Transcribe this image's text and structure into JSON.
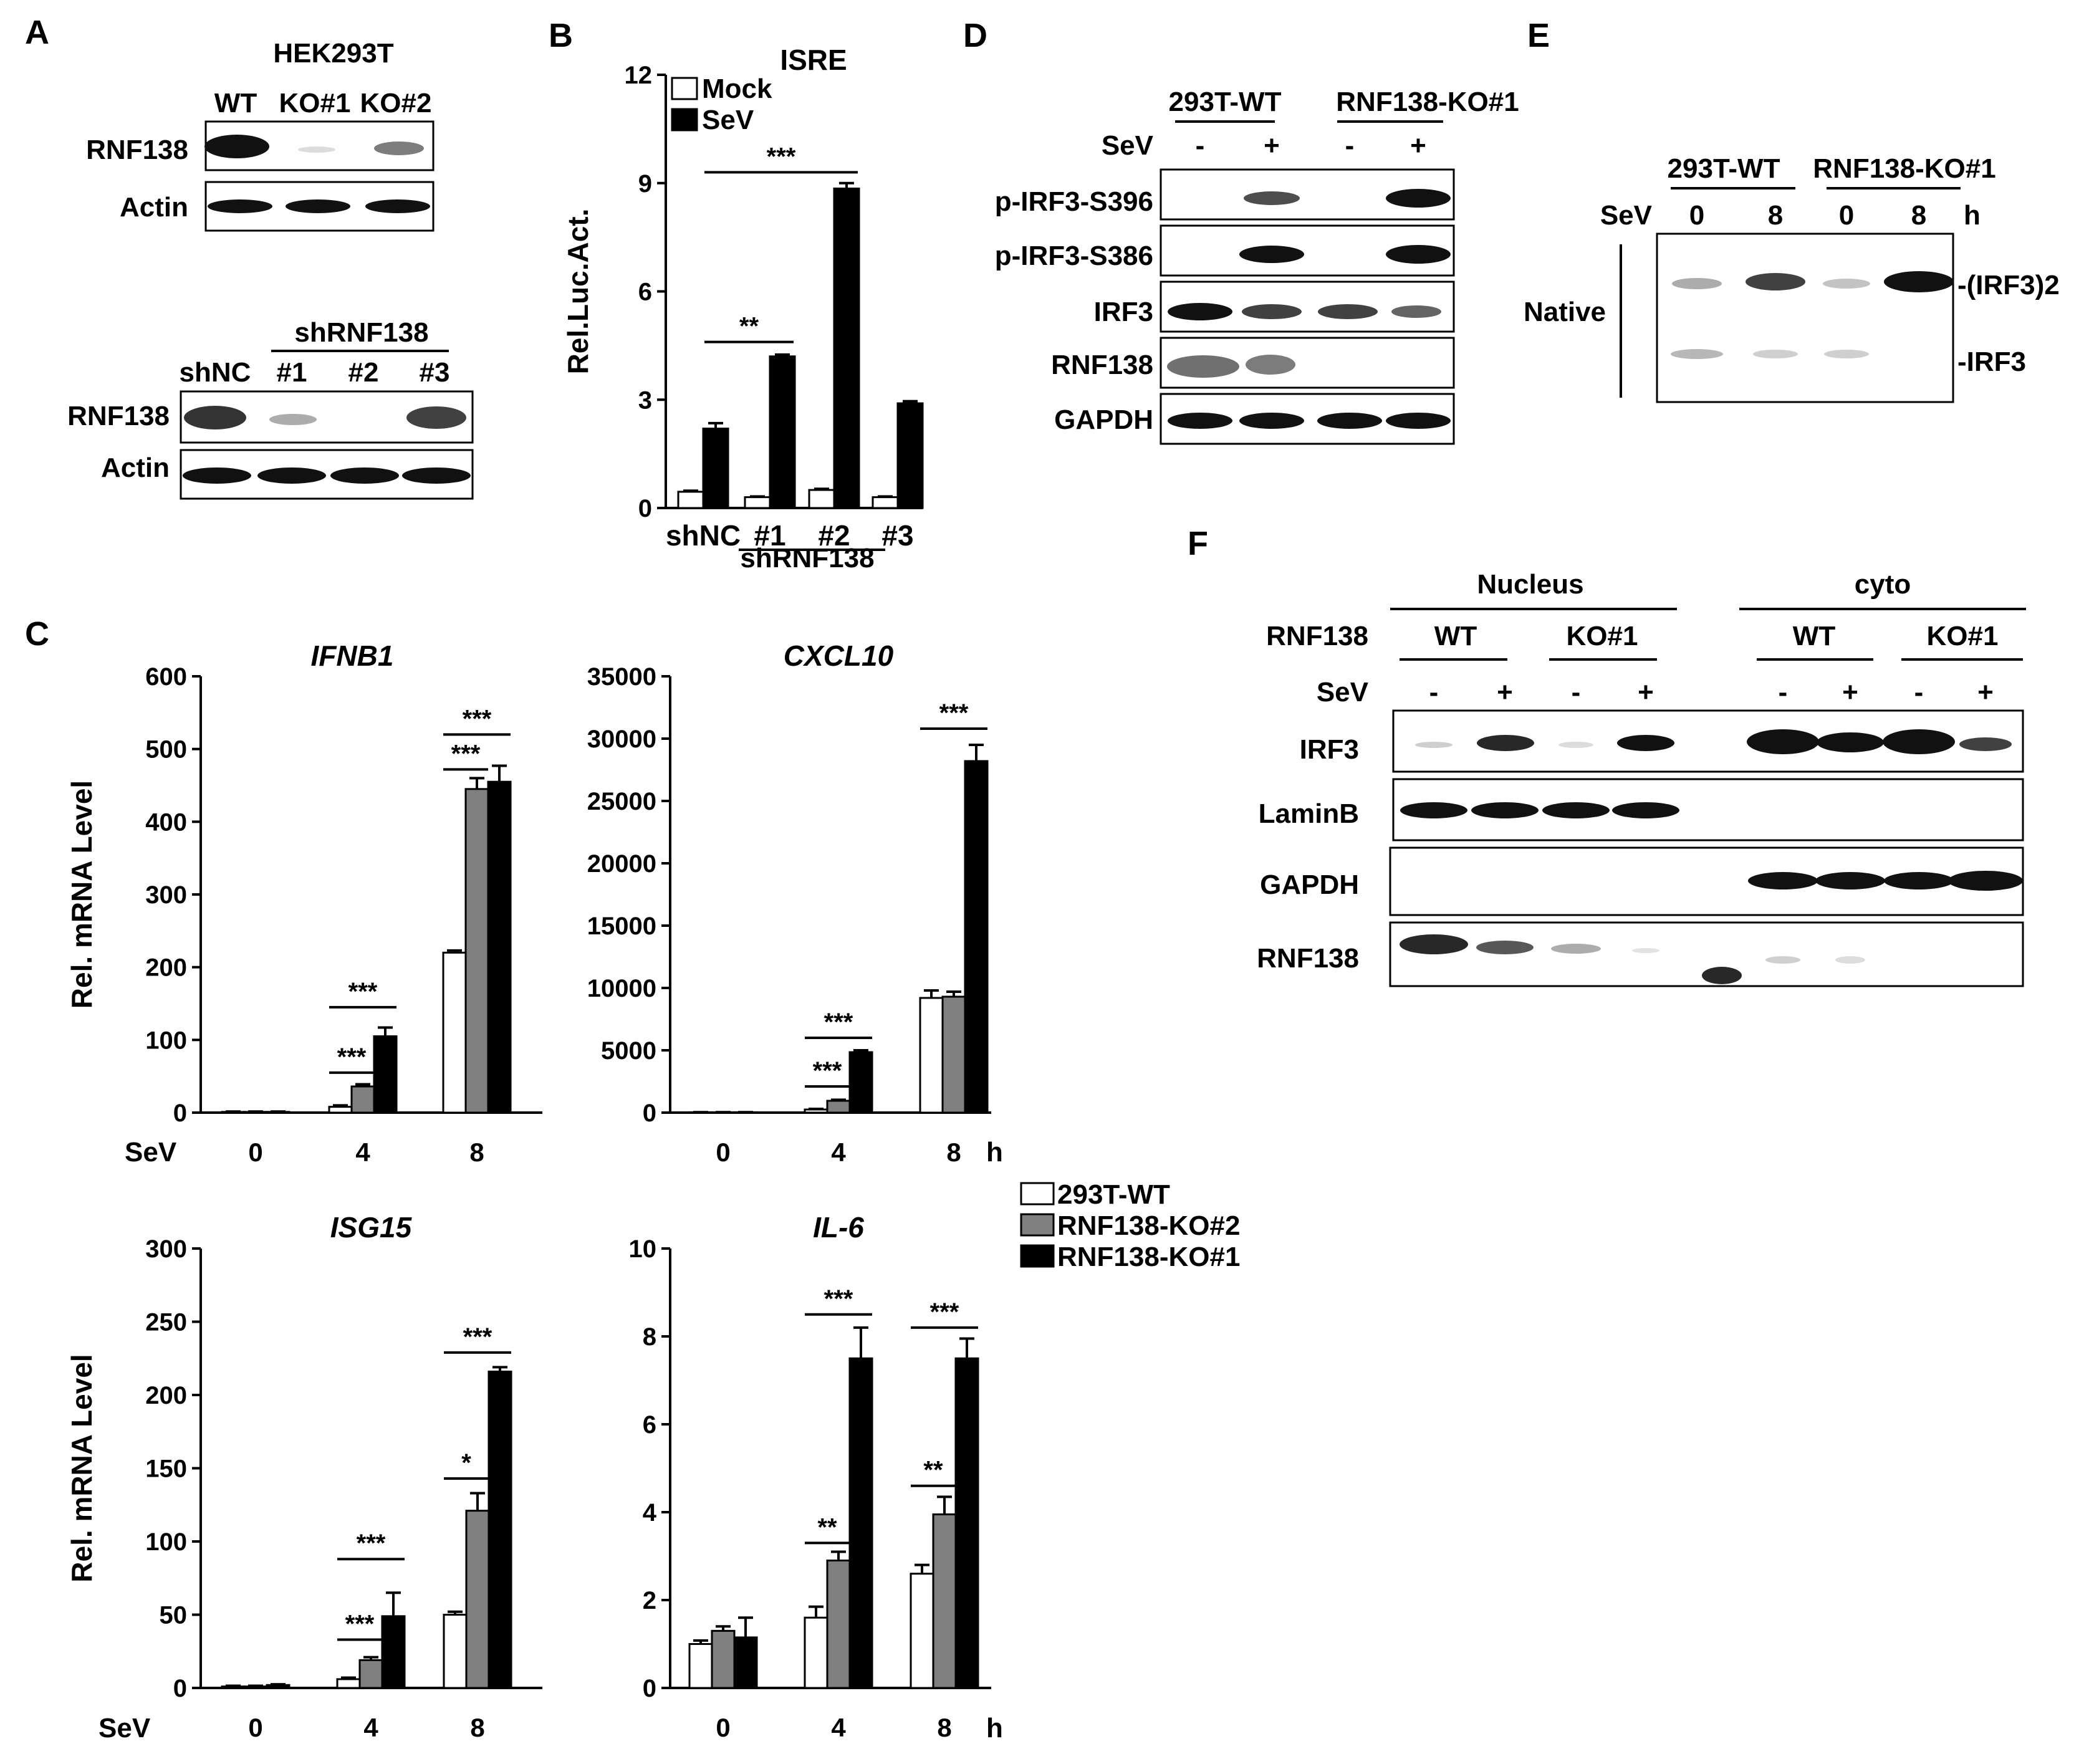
{
  "panels": {
    "A": {
      "letter": "A",
      "cell_line": "HEK293T",
      "ko_lanes": [
        "WT",
        "KO#1",
        "KO#2"
      ],
      "ko_rows": [
        "RNF138",
        "Actin"
      ],
      "sh_group": "shRNF138",
      "sh_lanes": [
        "shNC",
        "#1",
        "#2",
        "#3"
      ],
      "sh_rows": [
        "RNF138",
        "Actin"
      ]
    },
    "B": {
      "letter": "B",
      "sh_group": "shRNF138"
    },
    "C": {
      "letter": "C",
      "sev_label": "SeV",
      "h_label": "h",
      "legend": [
        "293T-WT",
        "RNF138-KO#2",
        "RNF138-KO#1"
      ]
    },
    "D": {
      "letter": "D",
      "groups": [
        "293T-WT",
        "RNF138-KO#1"
      ],
      "sev_label": "SeV",
      "treat": [
        "-",
        "+",
        "-",
        "+"
      ],
      "rows": [
        "p-IRF3-S396",
        "p-IRF3-S386",
        "IRF3",
        "RNF138",
        "GAPDH"
      ]
    },
    "E": {
      "letter": "E",
      "groups": [
        "293T-WT",
        "RNF138-KO#1"
      ],
      "sev_label": "SeV",
      "times": [
        "0",
        "8",
        "0",
        "8"
      ],
      "h_label": "h",
      "side_label": "Native",
      "bands": [
        "-(IRF3)2",
        "-IRF3"
      ]
    },
    "F": {
      "letter": "F",
      "fractions": [
        "Nucleus",
        "cyto"
      ],
      "row_label": "RNF138",
      "genotypes": [
        "WT",
        "KO#1",
        "WT",
        "KO#1"
      ],
      "sev_label": "SeV",
      "treat": [
        "-",
        "+",
        "-",
        "+",
        "-",
        "+",
        "-",
        "+"
      ],
      "rows": [
        "IRF3",
        "LaminB",
        "GAPDH",
        "RNF138"
      ]
    }
  },
  "chart_data": [
    {
      "id": "B",
      "type": "bar",
      "title": "ISRE",
      "ylabel": "Rel.Luc.Act.",
      "categories": [
        "shNC",
        "#1",
        "#2",
        "#3"
      ],
      "ylim": [
        0,
        12
      ],
      "yticks": [
        0,
        3,
        6,
        9,
        12
      ],
      "series": [
        {
          "name": "Mock",
          "values": [
            0.45,
            0.3,
            0.5,
            0.3
          ],
          "errors": [
            0.03,
            0.02,
            0.03,
            0.02
          ],
          "color": "#ffffff"
        },
        {
          "name": "SeV",
          "values": [
            2.2,
            4.2,
            8.85,
            2.9
          ],
          "errors": [
            0.15,
            0.05,
            0.15,
            0.06
          ],
          "color": "#000000"
        }
      ],
      "significance": [
        {
          "label": "**",
          "from": 0,
          "to": 1,
          "y": 4.6
        },
        {
          "label": "***",
          "from": 0,
          "to": 2,
          "y": 9.3
        }
      ]
    },
    {
      "id": "IFNB1",
      "type": "bar",
      "title": "IFNB1",
      "ylabel": "Rel. mRNA Level",
      "categories": [
        "0",
        "4",
        "8"
      ],
      "ylim": [
        0,
        600
      ],
      "yticks": [
        0,
        100,
        200,
        300,
        400,
        500,
        600
      ],
      "series": [
        {
          "name": "293T-WT",
          "values": [
            1,
            8,
            220
          ],
          "errors": [
            0.5,
            2,
            3
          ],
          "color": "#ffffff"
        },
        {
          "name": "RNF138-KO#2",
          "values": [
            1,
            36,
            445
          ],
          "errors": [
            0.5,
            3,
            15
          ],
          "color": "#808080"
        },
        {
          "name": "RNF138-KO#1",
          "values": [
            1,
            105,
            455
          ],
          "errors": [
            0.5,
            12,
            22
          ],
          "color": "#000000"
        }
      ],
      "significance": [
        {
          "label": "***",
          "cat": 1,
          "from": 0,
          "to": 1,
          "y": 55
        },
        {
          "label": "***",
          "cat": 1,
          "from": 0,
          "to": 2,
          "y": 145
        },
        {
          "label": "***",
          "cat": 2,
          "from": 0,
          "to": 1,
          "y": 472
        },
        {
          "label": "***",
          "cat": 2,
          "from": 0,
          "to": 2,
          "y": 520
        }
      ]
    },
    {
      "id": "CXCL10",
      "type": "bar",
      "title": "CXCL10",
      "ylabel": "",
      "categories": [
        "0",
        "4",
        "8"
      ],
      "ylim": [
        0,
        35000
      ],
      "yticks": [
        0,
        5000,
        10000,
        15000,
        20000,
        25000,
        30000,
        35000
      ],
      "series": [
        {
          "name": "293T-WT",
          "values": [
            30,
            250,
            9200
          ],
          "errors": [
            10,
            50,
            600
          ],
          "color": "#ffffff"
        },
        {
          "name": "RNF138-KO#2",
          "values": [
            30,
            950,
            9300
          ],
          "errors": [
            10,
            80,
            400
          ],
          "color": "#808080"
        },
        {
          "name": "RNF138-KO#1",
          "values": [
            30,
            4850,
            28200
          ],
          "errors": [
            10,
            150,
            1300
          ],
          "color": "#000000"
        }
      ],
      "significance": [
        {
          "label": "***",
          "cat": 1,
          "from": 0,
          "to": 1,
          "y": 2100
        },
        {
          "label": "***",
          "cat": 1,
          "from": 0,
          "to": 2,
          "y": 6000
        },
        {
          "label": "***",
          "cat": 2,
          "from": 0,
          "to": 2,
          "y": 30800
        }
      ]
    },
    {
      "id": "ISG15",
      "type": "bar",
      "title": "ISG15",
      "ylabel": "Rel. mRNA Level",
      "categories": [
        "0",
        "4",
        "8"
      ],
      "ylim": [
        0,
        300
      ],
      "yticks": [
        0,
        50,
        100,
        150,
        200,
        250,
        300
      ],
      "series": [
        {
          "name": "293T-WT",
          "values": [
            1,
            6,
            50
          ],
          "errors": [
            0.5,
            1,
            2
          ],
          "color": "#ffffff"
        },
        {
          "name": "RNF138-KO#2",
          "values": [
            1,
            19,
            121
          ],
          "errors": [
            0.5,
            2,
            12
          ],
          "color": "#808080"
        },
        {
          "name": "RNF138-KO#1",
          "values": [
            2,
            49,
            216
          ],
          "errors": [
            0.5,
            16,
            3
          ],
          "color": "#000000"
        }
      ],
      "significance": [
        {
          "label": "***",
          "cat": 1,
          "from": 0,
          "to": 1,
          "y": 33
        },
        {
          "label": "***",
          "cat": 1,
          "from": 0,
          "to": 2,
          "y": 88
        },
        {
          "label": "*",
          "cat": 2,
          "from": 0,
          "to": 1,
          "y": 143
        },
        {
          "label": "***",
          "cat": 2,
          "from": 0,
          "to": 2,
          "y": 229
        }
      ]
    },
    {
      "id": "IL-6",
      "type": "bar",
      "title": "IL-6",
      "ylabel": "",
      "categories": [
        "0",
        "4",
        "8"
      ],
      "ylim": [
        0,
        10
      ],
      "yticks": [
        0,
        2,
        4,
        6,
        8,
        10
      ],
      "series": [
        {
          "name": "293T-WT",
          "values": [
            1.0,
            1.6,
            2.6
          ],
          "errors": [
            0.08,
            0.25,
            0.2
          ],
          "color": "#ffffff"
        },
        {
          "name": "RNF138-KO#2",
          "values": [
            1.3,
            2.9,
            3.95
          ],
          "errors": [
            0.1,
            0.2,
            0.4
          ],
          "color": "#808080"
        },
        {
          "name": "RNF138-KO#1",
          "values": [
            1.15,
            7.5,
            7.5
          ],
          "errors": [
            0.45,
            0.7,
            0.45
          ],
          "color": "#000000"
        }
      ],
      "significance": [
        {
          "label": "**",
          "cat": 1,
          "from": 0,
          "to": 1,
          "y": 3.3
        },
        {
          "label": "***",
          "cat": 1,
          "from": 0,
          "to": 2,
          "y": 8.5
        },
        {
          "label": "**",
          "cat": 2,
          "from": 0,
          "to": 1,
          "y": 4.6
        },
        {
          "label": "***",
          "cat": 2,
          "from": 0,
          "to": 2,
          "y": 8.2
        }
      ]
    }
  ]
}
